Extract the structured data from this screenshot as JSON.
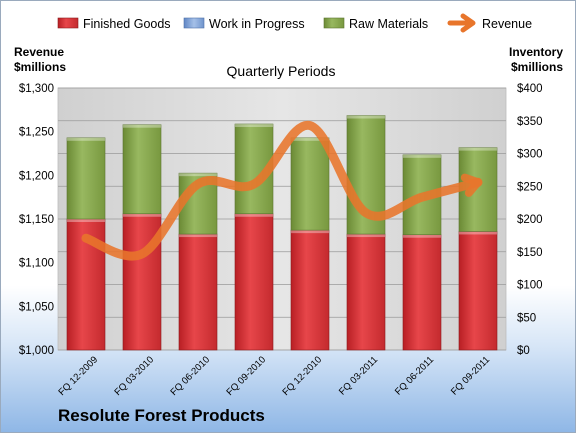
{
  "company_name": "Resolute Forest Products",
  "chart_data": {
    "type": "bar",
    "subtitle": "Quarterly Periods",
    "left_axis_label": [
      "Revenue",
      "$millions"
    ],
    "right_axis_label": [
      "Inventory",
      "$millions"
    ],
    "categories": [
      "FQ 12-2009",
      "FQ 03-2010",
      "FQ 06-2010",
      "FQ 09-2010",
      "FQ 12-2010",
      "FQ 03-2011",
      "FQ 06-2011",
      "FQ 09-2011"
    ],
    "left_axis": {
      "min": 1000,
      "max": 1300,
      "ticks": [
        1000,
        1050,
        1100,
        1150,
        1200,
        1250,
        1300
      ],
      "tick_labels": [
        "$1,000",
        "$1,050",
        "$1,100",
        "$1,150",
        "$1,200",
        "$1,250",
        "$1,300"
      ]
    },
    "right_axis": {
      "min": 0,
      "max": 400,
      "ticks": [
        0,
        50,
        100,
        150,
        200,
        250,
        300,
        350,
        400
      ],
      "tick_labels": [
        "$0",
        "$50",
        "$100",
        "$150",
        "$200",
        "$250",
        "$300",
        "$350",
        "$400"
      ]
    },
    "legend": {
      "position": "top",
      "items": [
        {
          "name": "Finished Goods",
          "kind": "bar",
          "color": "#d9363a"
        },
        {
          "name": "Work in Progress",
          "kind": "bar",
          "color": "#7ea2d6"
        },
        {
          "name": "Raw Materials",
          "kind": "bar",
          "color": "#84a24a"
        },
        {
          "name": "Revenue",
          "kind": "arrow",
          "color": "#e8752b"
        }
      ]
    },
    "series": [
      {
        "name": "Finished Goods",
        "axis": "right",
        "stacked": true,
        "color": "#d9363a",
        "values": [
          200,
          208,
          177,
          208,
          183,
          177,
          176,
          181
        ]
      },
      {
        "name": "Work in Progress",
        "axis": "right",
        "stacked": true,
        "color": "#7ea2d6",
        "values": [
          0,
          0,
          0,
          0,
          0,
          0,
          0,
          0
        ]
      },
      {
        "name": "Raw Materials",
        "axis": "right",
        "stacked": true,
        "color": "#84a24a",
        "values": [
          124,
          136,
          93,
          137,
          141,
          181,
          122,
          128
        ]
      },
      {
        "name": "Revenue",
        "axis": "left",
        "type": "line",
        "color": "#e8752b",
        "values": [
          1128,
          1110,
          1190,
          1190,
          1257,
          1157,
          1175,
          1192
        ]
      }
    ],
    "grid": true
  }
}
